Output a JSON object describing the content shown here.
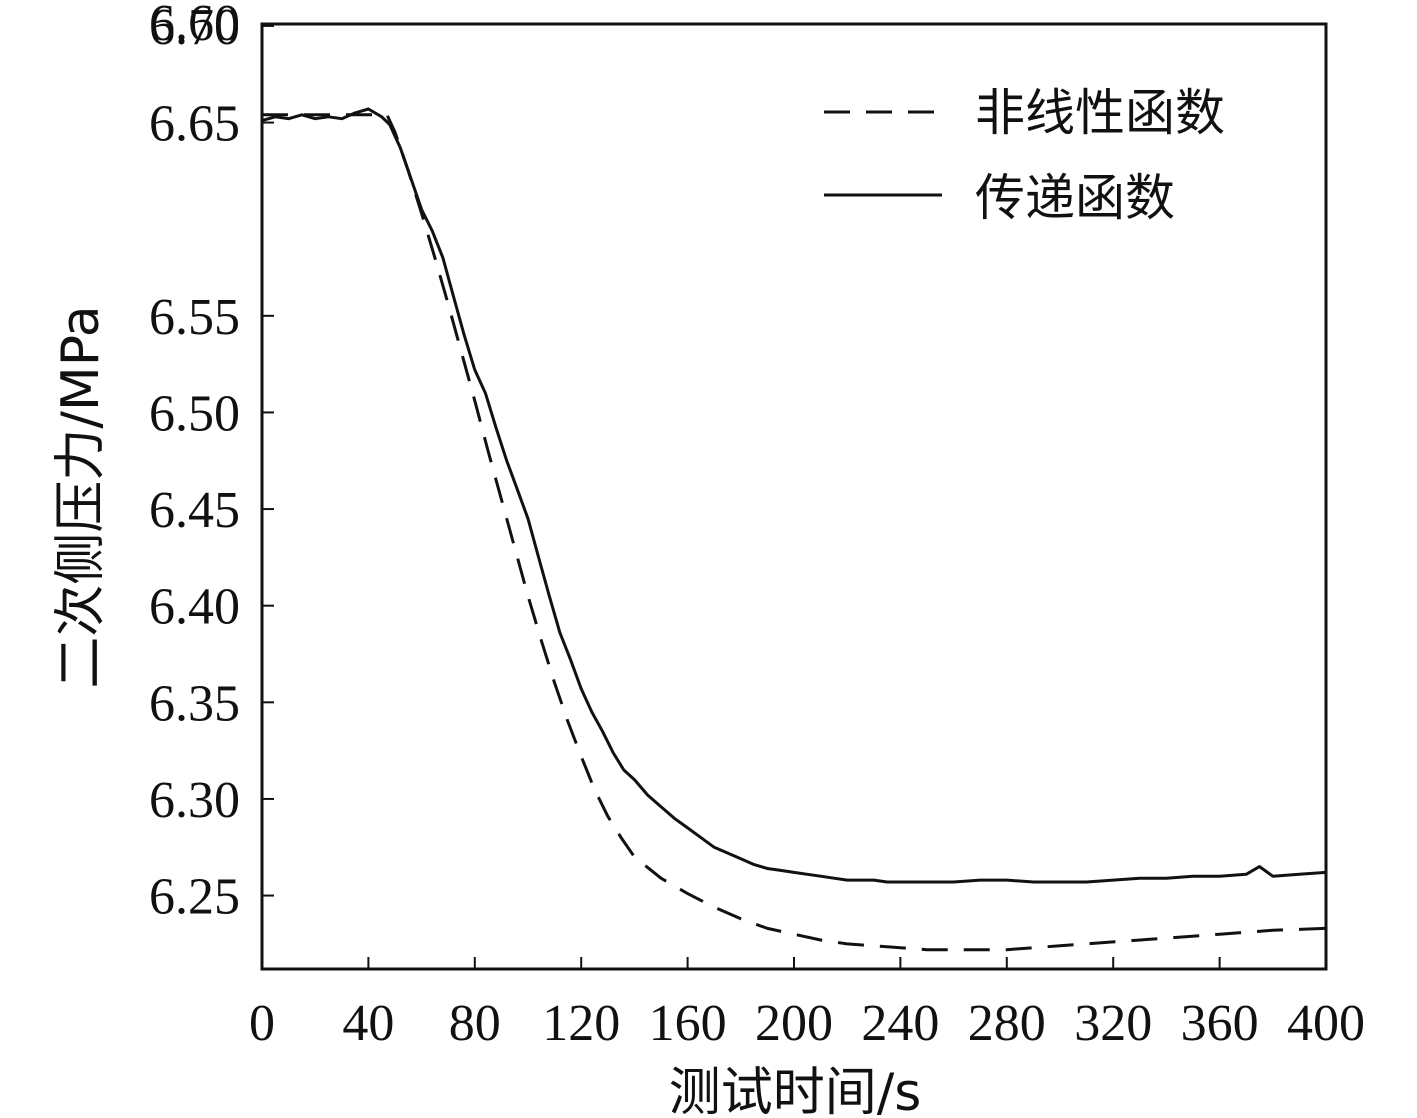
{
  "chart_data": {
    "type": "line",
    "xlabel": "测试时间/s",
    "ylabel": "二次侧压力/MPa",
    "xlim": [
      0,
      400
    ],
    "ylim": [
      6.212,
      6.701
    ],
    "x_ticks": [
      0,
      40,
      80,
      120,
      160,
      200,
      240,
      280,
      320,
      360,
      400
    ],
    "y_ticks": [
      6.25,
      6.3,
      6.35,
      6.4,
      6.45,
      6.5,
      6.55,
      6.65,
      6.7
    ],
    "y_tick_labels": [
      "6.25",
      "6.30",
      "6.35",
      "6.40",
      "6.45",
      "6.50",
      "6.55",
      "6.65",
      "6.70"
    ],
    "top_edge_label": "6.60",
    "grid": false,
    "legend_position": "top-right",
    "series": [
      {
        "name": "非线性函数",
        "style": "dashed",
        "color": "#111111",
        "x": [
          0,
          10,
          20,
          30,
          40,
          47,
          50,
          55,
          60,
          65,
          70,
          75,
          80,
          85,
          90,
          95,
          100,
          105,
          110,
          115,
          120,
          125,
          130,
          135,
          140,
          150,
          160,
          170,
          180,
          190,
          200,
          210,
          220,
          230,
          240,
          250,
          260,
          270,
          280,
          290,
          300,
          320,
          340,
          360,
          380,
          400
        ],
        "y": [
          6.654,
          6.654,
          6.654,
          6.654,
          6.654,
          6.654,
          6.645,
          6.625,
          6.603,
          6.58,
          6.556,
          6.531,
          6.506,
          6.48,
          6.455,
          6.43,
          6.405,
          6.382,
          6.36,
          6.34,
          6.322,
          6.305,
          6.291,
          6.28,
          6.27,
          6.259,
          6.251,
          6.244,
          6.238,
          6.233,
          6.23,
          6.227,
          6.225,
          6.224,
          6.223,
          6.222,
          6.222,
          6.222,
          6.222,
          6.223,
          6.224,
          6.226,
          6.228,
          6.23,
          6.232,
          6.233
        ]
      },
      {
        "name": "传递函数",
        "style": "solid",
        "color": "#111111",
        "x": [
          0,
          5,
          10,
          15,
          20,
          25,
          30,
          35,
          40,
          45,
          48,
          52,
          56,
          60,
          64,
          68,
          72,
          76,
          80,
          84,
          88,
          92,
          96,
          100,
          104,
          108,
          112,
          116,
          120,
          124,
          128,
          132,
          136,
          140,
          145,
          150,
          155,
          160,
          165,
          170,
          175,
          180,
          185,
          190,
          195,
          200,
          205,
          210,
          215,
          220,
          225,
          230,
          235,
          240,
          250,
          260,
          270,
          280,
          290,
          300,
          310,
          320,
          330,
          340,
          350,
          360,
          370,
          375,
          380,
          390,
          400
        ],
        "y": [
          6.651,
          6.653,
          6.652,
          6.654,
          6.652,
          6.653,
          6.652,
          6.655,
          6.657,
          6.653,
          6.649,
          6.637,
          6.621,
          6.605,
          6.594,
          6.58,
          6.56,
          6.54,
          6.522,
          6.51,
          6.492,
          6.475,
          6.46,
          6.445,
          6.425,
          6.405,
          6.386,
          6.372,
          6.357,
          6.345,
          6.335,
          6.324,
          6.315,
          6.31,
          6.302,
          6.296,
          6.29,
          6.285,
          6.28,
          6.275,
          6.272,
          6.269,
          6.266,
          6.264,
          6.263,
          6.262,
          6.261,
          6.26,
          6.259,
          6.258,
          6.258,
          6.258,
          6.257,
          6.257,
          6.257,
          6.257,
          6.258,
          6.258,
          6.257,
          6.257,
          6.257,
          6.258,
          6.259,
          6.259,
          6.26,
          6.26,
          6.261,
          6.265,
          6.26,
          6.261,
          6.262
        ]
      }
    ]
  }
}
